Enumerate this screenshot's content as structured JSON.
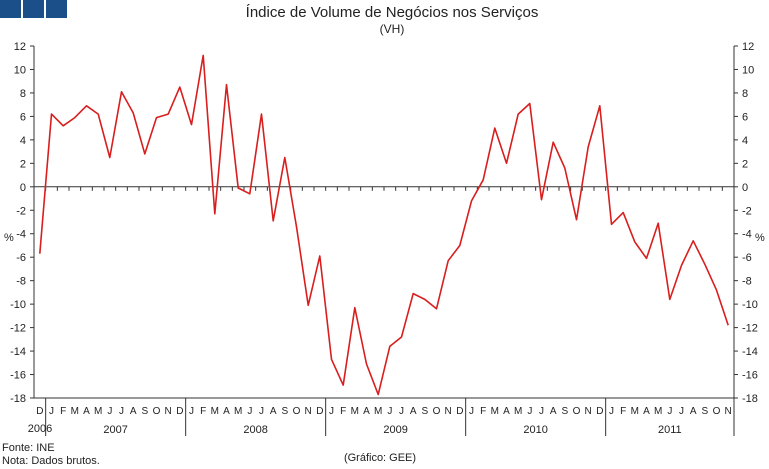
{
  "logo": {
    "colors": [
      "#1b4f8a",
      "#1b4f8a",
      "#1b4f8a"
    ]
  },
  "footer": {
    "source": "Fonte: INE",
    "note": "Nota: Dados brutos.",
    "credit": "(Gráfico: GEE)"
  },
  "chart_data": {
    "type": "line",
    "title": "Índice de Volume de Negócios nos Serviços",
    "subtitle": "(VH)",
    "ylabel_left": "%",
    "ylabel_right": "%",
    "ylim": [
      -18,
      12
    ],
    "yticks": [
      12,
      10,
      8,
      6,
      4,
      2,
      0,
      -2,
      -4,
      -6,
      -8,
      -10,
      -12,
      -14,
      -16,
      -18
    ],
    "grid": false,
    "zero_line": true,
    "color": "#d91e1e",
    "months": [
      "D",
      "J",
      "F",
      "M",
      "A",
      "M",
      "J",
      "J",
      "A",
      "S",
      "O",
      "N",
      "D",
      "J",
      "F",
      "M",
      "A",
      "M",
      "J",
      "J",
      "A",
      "S",
      "O",
      "N",
      "D",
      "J",
      "F",
      "M",
      "A",
      "M",
      "J",
      "J",
      "A",
      "S",
      "O",
      "N",
      "D",
      "J",
      "F",
      "M",
      "A",
      "M",
      "J",
      "J",
      "A",
      "S",
      "O",
      "N",
      "D",
      "J",
      "F",
      "M",
      "A",
      "M",
      "J",
      "J",
      "A",
      "S",
      "O",
      "N"
    ],
    "years": [
      {
        "label": "2006",
        "start": 0,
        "end": 0
      },
      {
        "label": "2007",
        "start": 1,
        "end": 12
      },
      {
        "label": "2008",
        "start": 13,
        "end": 24
      },
      {
        "label": "2009",
        "start": 25,
        "end": 36
      },
      {
        "label": "2010",
        "start": 37,
        "end": 48
      },
      {
        "label": "2011",
        "start": 49,
        "end": 59
      }
    ],
    "values": [
      -5.7,
      6.2,
      5.2,
      5.9,
      6.9,
      6.2,
      2.5,
      8.1,
      6.3,
      2.8,
      5.9,
      6.2,
      8.5,
      5.3,
      11.2,
      -2.3,
      8.7,
      -0.1,
      -0.6,
      6.2,
      -2.9,
      2.5,
      -3.4,
      -10.1,
      -5.9,
      -14.7,
      -16.9,
      -10.3,
      -15.1,
      -17.7,
      -13.6,
      -12.8,
      -9.1,
      -9.6,
      -10.4,
      -6.3,
      -5.0,
      -1.2,
      0.6,
      5.0,
      2.0,
      6.2,
      7.1,
      -1.1,
      3.8,
      1.6,
      -2.8,
      3.4,
      6.9,
      -3.2,
      -2.2,
      -4.7,
      -6.1,
      -3.1,
      -9.6,
      -6.7,
      -4.6,
      -6.6,
      -8.8,
      -11.8
    ]
  }
}
